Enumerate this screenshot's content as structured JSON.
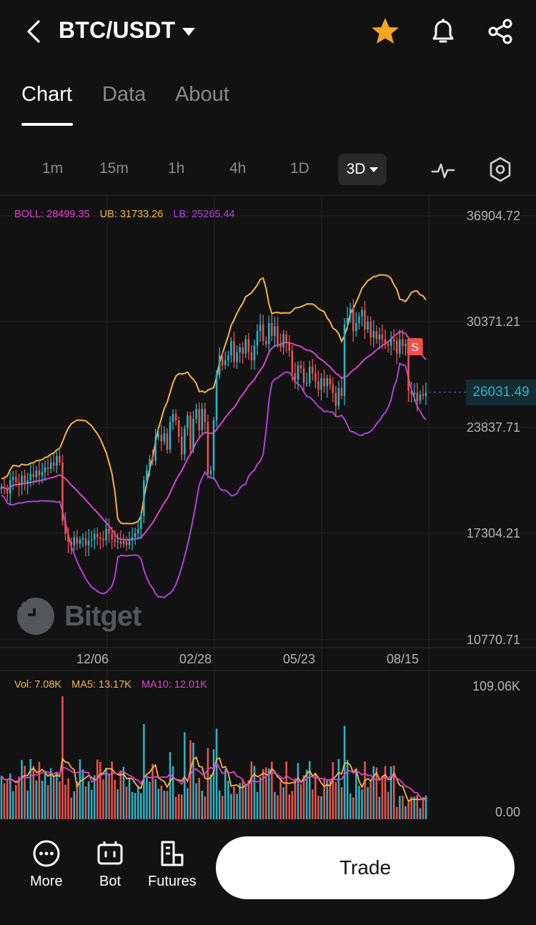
{
  "header": {
    "pair": "BTC/USDT"
  },
  "tabs": [
    {
      "label": "Chart",
      "active": true
    },
    {
      "label": "Data",
      "active": false
    },
    {
      "label": "About",
      "active": false
    }
  ],
  "intervals": [
    "1m",
    "15m",
    "1h",
    "4h",
    "1D"
  ],
  "active_interval": "3D",
  "indicators": {
    "boll": "BOLL: 28499.35",
    "ub": "UB: 31733.26",
    "lb": "LB: 25265.44",
    "vol": "Vol: 7.08K",
    "ma5": "MA5: 13.17K",
    "ma10": "MA10: 12.01K"
  },
  "colors": {
    "up": "#2bb4c9",
    "down": "#f0524a",
    "boll_mid": "#e040d0",
    "boll_ub": "#f5b640",
    "boll_lb": "#b040e0",
    "star": "#f5a623",
    "signal": "#f0524a"
  },
  "signal_label": "S",
  "watermark": "Bitget",
  "bottom_nav": {
    "more": "More",
    "bot": "Bot",
    "futures": "Futures",
    "trade": "Trade"
  },
  "chart_data": {
    "type": "candlestick",
    "price_axis_labels": [
      "36904.72",
      "30371.21",
      "23837.71",
      "17304.21",
      "10770.71"
    ],
    "current_price": "26031.49",
    "date_labels": [
      "12/06",
      "02/28",
      "05/23",
      "08/15"
    ],
    "volume_axis_labels": [
      "109.06K",
      "0.00"
    ],
    "ylim": [
      10770.71,
      36904.72
    ],
    "volume_ylim": [
      0,
      109.06
    ],
    "close": [
      20200,
      20100,
      19800,
      20600,
      20800,
      20500,
      20300,
      20900,
      20400,
      20600,
      21000,
      20800,
      21200,
      20900,
      21100,
      21400,
      21300,
      21700,
      21500,
      22100,
      21700,
      18100,
      17300,
      16800,
      16600,
      17100,
      16700,
      16950,
      17050,
      16600,
      16900,
      16950,
      17300,
      17100,
      17000,
      16900,
      17600,
      17300,
      16950,
      16800,
      16850,
      16700,
      16850,
      16600,
      16900,
      17100,
      17350,
      17600,
      18400,
      20600,
      21200,
      21900,
      21800,
      23300,
      23400,
      23000,
      23500,
      22500,
      24200,
      24700,
      24300,
      23300,
      22200,
      23800,
      24600,
      22500,
      24400,
      25000,
      23700,
      25000,
      24200,
      21000,
      21200,
      24300,
      27100,
      28300,
      27700,
      28000,
      28300,
      29200,
      27900,
      28500,
      28800,
      28400,
      29300,
      28500,
      28000,
      28900,
      29800,
      30200,
      29200,
      29000,
      30300,
      29500,
      30100,
      29000,
      28800,
      29600,
      29100,
      28600,
      27200,
      26800,
      27700,
      27500,
      26600,
      26600,
      27600,
      27200,
      26700,
      26200,
      26900,
      26400,
      26900,
      26500,
      26000,
      25200,
      26300,
      25800,
      30200,
      30600,
      31200,
      29800,
      30300,
      30700,
      31100,
      29900,
      30400,
      29400,
      29800,
      29300,
      29600,
      29300,
      29000,
      28900,
      29300,
      29200,
      28400,
      29300,
      28900,
      29000,
      26100,
      25900,
      26000,
      25500,
      25900,
      25800,
      26000
    ]
  }
}
